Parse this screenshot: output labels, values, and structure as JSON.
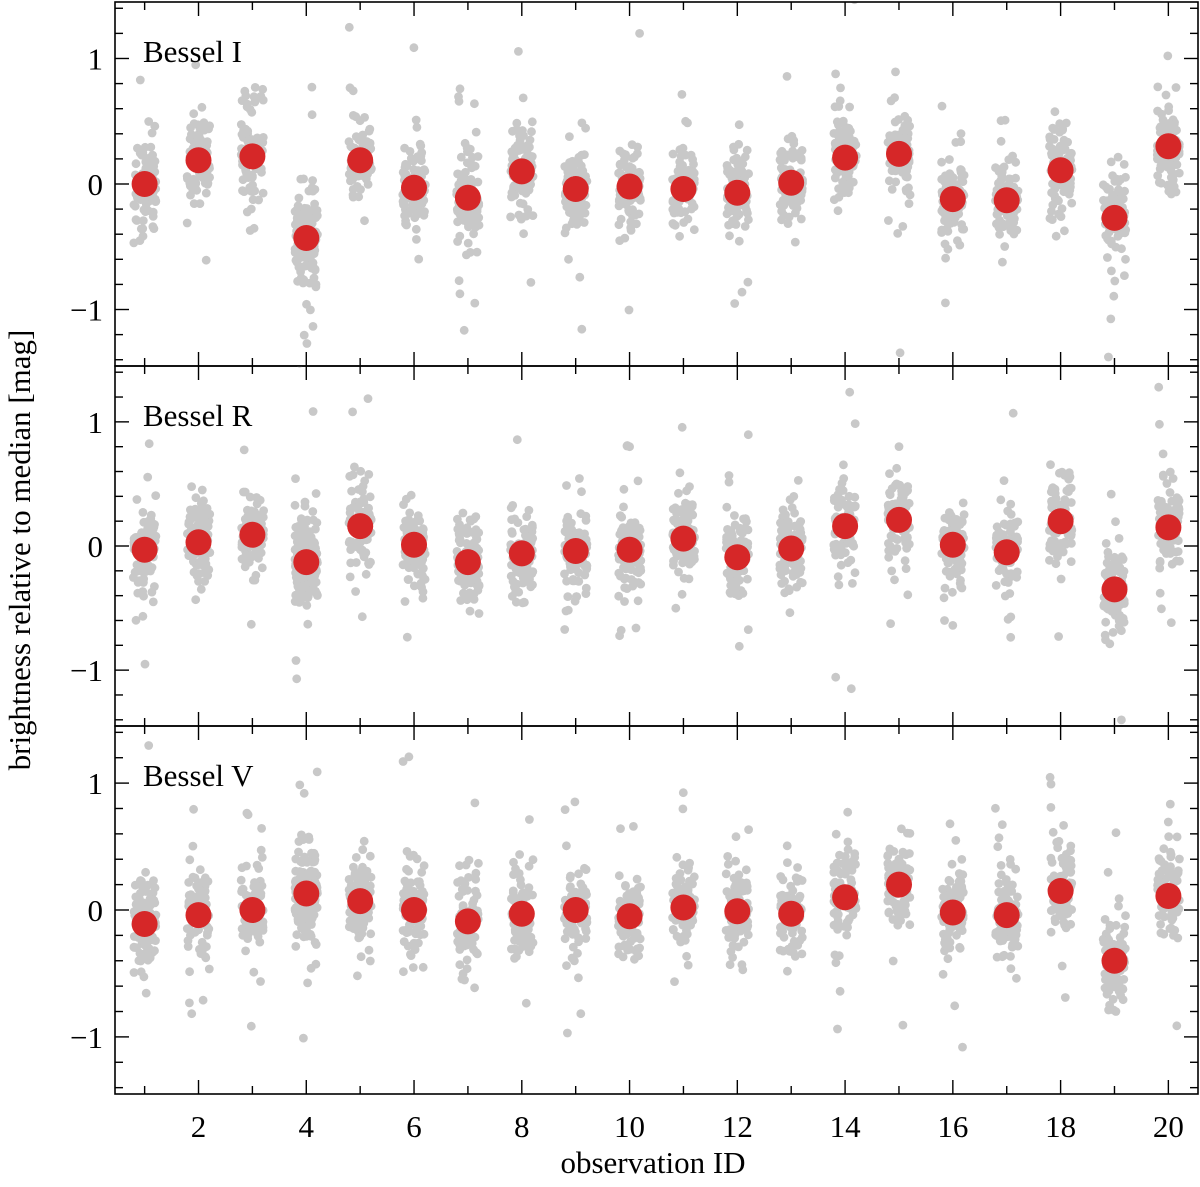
{
  "chart_data": {
    "type": "scatter",
    "xlabel": "observation ID",
    "ylabel": "brightness relative to median [mag]",
    "xlim": [
      0.45,
      20.55
    ],
    "ylim": [
      -1.45,
      1.45
    ],
    "x_ticks": [
      2,
      4,
      6,
      8,
      10,
      12,
      14,
      16,
      18,
      20
    ],
    "y_ticks": [
      -1,
      0,
      1
    ],
    "y_tick_labels": [
      "−1",
      "0",
      "1"
    ],
    "x": [
      1,
      2,
      3,
      4,
      5,
      6,
      7,
      8,
      9,
      10,
      11,
      12,
      13,
      14,
      15,
      16,
      17,
      18,
      19,
      20
    ],
    "point_color": "#c8c8c8",
    "median_color": "#d62728",
    "panels": [
      {
        "label": "Bessel I",
        "medians": [
          0.0,
          0.19,
          0.22,
          -0.43,
          0.19,
          -0.03,
          -0.11,
          0.1,
          -0.04,
          -0.02,
          -0.04,
          -0.07,
          0.01,
          0.21,
          0.24,
          -0.12,
          -0.13,
          0.11,
          -0.27,
          0.3
        ]
      },
      {
        "label": "Bessel R",
        "medians": [
          -0.03,
          0.03,
          0.09,
          -0.13,
          0.16,
          0.01,
          -0.13,
          -0.06,
          -0.04,
          -0.03,
          0.06,
          -0.09,
          -0.02,
          0.16,
          0.21,
          0.01,
          -0.05,
          0.2,
          -0.35,
          0.15
        ]
      },
      {
        "label": "Bessel V",
        "medians": [
          -0.11,
          -0.04,
          0.0,
          0.13,
          0.07,
          0.0,
          -0.09,
          -0.03,
          0.0,
          -0.05,
          0.02,
          -0.01,
          -0.03,
          0.1,
          0.2,
          -0.02,
          -0.04,
          0.15,
          -0.4,
          0.11
        ]
      }
    ]
  }
}
